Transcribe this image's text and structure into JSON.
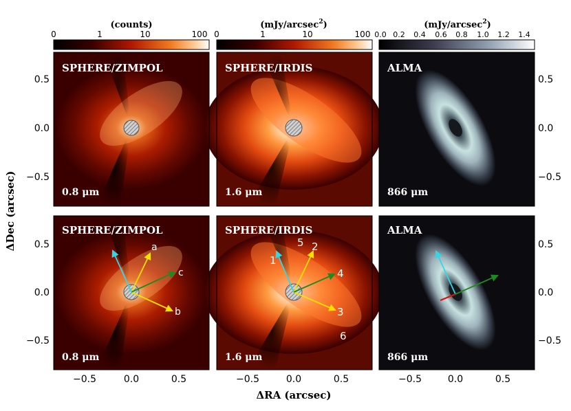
{
  "figure": {
    "x_axis_label": "ΔRA (arcsec)",
    "y_axis_label": "ΔDec (arcsec)",
    "axis_ticks": [
      "−0.5",
      "0.0",
      "0.5"
    ]
  },
  "colorbars": [
    {
      "unit_label": "(counts)",
      "scale": "log",
      "ticks": [
        "0",
        "1",
        "10",
        "100"
      ],
      "colormap": "black-red-orange-white"
    },
    {
      "unit_label": "(mJy/arcsec",
      "unit_power": "2",
      "unit_close": ")",
      "scale": "log",
      "ticks": [
        "0",
        "1",
        "10",
        "100"
      ],
      "colormap": "black-red-orange-white"
    },
    {
      "unit_label": "(mJy/arcsec",
      "unit_power": "2",
      "unit_close": ")",
      "scale": "linear",
      "ticks": [
        "0.0",
        "0.2",
        "0.4",
        "0.6",
        "0.8",
        "1.0",
        "1.2",
        "1.4"
      ],
      "colormap": "black-grey-teal-white"
    }
  ],
  "panels": [
    {
      "instrument": "SPHERE/ZIMPOL",
      "wavelength": "0.8 μm",
      "image": "polarized-scattered-light-disk",
      "coronagraph_mask": true
    },
    {
      "instrument": "SPHERE/IRDIS",
      "wavelength": "1.6 μm",
      "image": "polarized-scattered-light-disk",
      "coronagraph_mask": true
    },
    {
      "instrument": "ALMA",
      "wavelength": "866 μm",
      "image": "dust-continuum-ring",
      "coronagraph_mask": false
    },
    {
      "instrument": "SPHERE/ZIMPOL",
      "wavelength": "0.8 μm",
      "image": "polarized-scattered-light-disk",
      "coronagraph_mask": true,
      "arrows": [
        {
          "label": "a",
          "color": "#f5e000"
        },
        {
          "label": "b",
          "color": "#f5e000"
        },
        {
          "label": "c",
          "color": "#1f8a1f"
        },
        {
          "label": "",
          "color": "#2fd8e8"
        }
      ]
    },
    {
      "instrument": "SPHERE/IRDIS",
      "wavelength": "1.6 μm",
      "image": "polarized-scattered-light-disk",
      "coronagraph_mask": true,
      "arrows": [
        {
          "label": "1",
          "color": "#2fd8e8"
        },
        {
          "label": "2",
          "color": "#f5e000"
        },
        {
          "label": "3",
          "color": "#f5e000"
        },
        {
          "label": "4",
          "color": "#1f8a1f"
        }
      ],
      "feature_labels": [
        "5",
        "6"
      ]
    },
    {
      "instrument": "ALMA",
      "wavelength": "866 μm",
      "image": "dust-continuum-ring",
      "coronagraph_mask": false,
      "arrows": [
        {
          "label": "",
          "color": "#2fd8e8"
        },
        {
          "label": "",
          "color": "#1f8a1f"
        },
        {
          "label": "",
          "color": "#e01010"
        }
      ]
    }
  ]
}
